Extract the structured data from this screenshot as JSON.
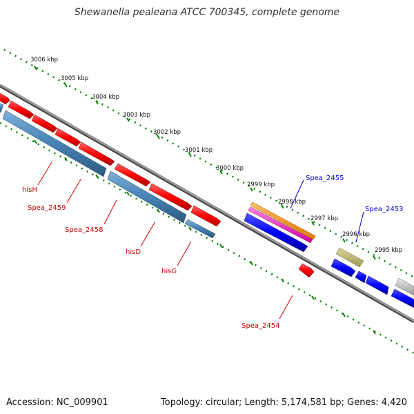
{
  "title": "Shewanella pealeana ATCC 700345, complete genome",
  "footer": {
    "accession": "Accession: NC_009901",
    "summary": "Topology: circular; Length: 5,174,581 bp; Genes: 4,420"
  },
  "ruler_labels": [
    "3006 kbp",
    "3005 kbp",
    "3004 kbp",
    "3003 kbp",
    "3002 kbp",
    "3001 kbp",
    "3000 kbp",
    "2999 kbp",
    "2998 kbp",
    "2997 kbp",
    "2996 kbp",
    "2995 kbp"
  ],
  "gene_labels": {
    "hisH": "hisH",
    "spea2459": "Spea_2459",
    "spea2458": "Spea_2458",
    "hisD": "hisD",
    "hisG": "hisG",
    "spea2454": "Spea_2454",
    "spea2455": "Spea_2455",
    "spea2453": "Spea_2453"
  },
  "colors": {
    "forward_cds": "#ff0000",
    "reverse_cds": "#4682b4",
    "blue_cds": "#0000ff",
    "orange_feature": "#ff9900",
    "magenta_feature": "#ff33cc",
    "olive_feature": "#bdb76b",
    "gray_feature": "#c0c0c0",
    "backbone": "#808080",
    "ruler": "#008000",
    "red_label": "#cc0000",
    "blue_label": "#0000cc"
  }
}
